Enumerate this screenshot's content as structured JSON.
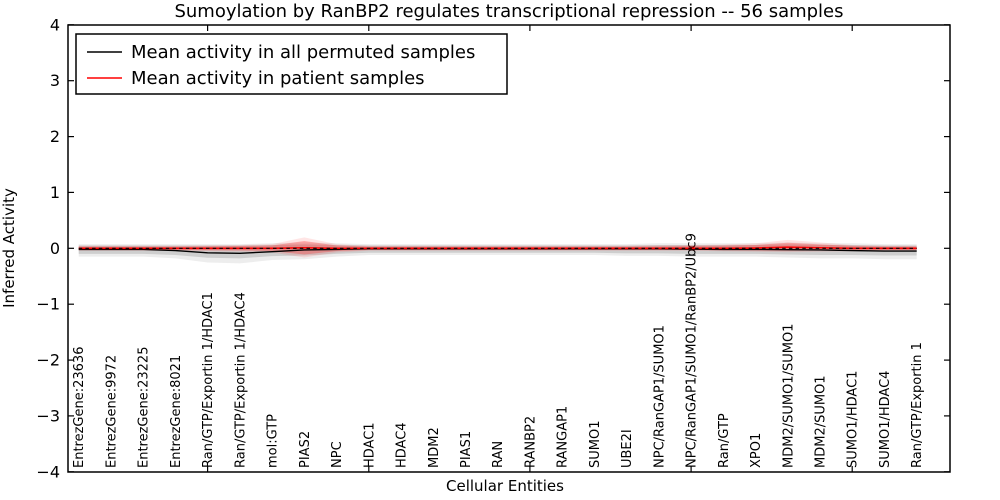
{
  "chart_data": {
    "type": "line",
    "title": "Sumoylation by RanBP2 regulates transcriptional repression -- 56 samples",
    "xlabel": "Cellular Entities",
    "ylabel": "Inferred Activity",
    "ylim": [
      -4,
      4
    ],
    "grid": false,
    "legend_position": "upper-left",
    "categories": [
      "EntrezGene:23636",
      "EntrezGene:9972",
      "EntrezGene:23225",
      "EntrezGene:8021",
      "Ran/GTP/Exportin 1/HDAC1",
      "Ran/GTP/Exportin 1/HDAC4",
      "mol:GTP",
      "PIAS2",
      "NPC",
      "HDAC1",
      "HDAC4",
      "MDM2",
      "PIAS1",
      "RAN",
      "RANBP2",
      "RANGAP1",
      "SUMO1",
      "UBE2I",
      "NPC/RanGAP1/SUMO1",
      "NPC/RanGAP1/SUMO1/RanBP2/Ubc9",
      "Ran/GTP",
      "XPO1",
      "MDM2/SUMO1/SUMO1",
      "MDM2/SUMO1",
      "SUMO1/HDAC1",
      "SUMO1/HDAC4",
      "Ran/GTP/Exportin 1"
    ],
    "yticks": [
      {
        "value": 4,
        "label": "4"
      },
      {
        "value": 3,
        "label": "3"
      },
      {
        "value": 2,
        "label": "2"
      },
      {
        "value": 1,
        "label": "1"
      },
      {
        "value": 0,
        "label": "0"
      },
      {
        "value": -1,
        "label": "−1"
      },
      {
        "value": -2,
        "label": "−2"
      },
      {
        "value": -3,
        "label": "−3"
      },
      {
        "value": -4,
        "label": "−4"
      }
    ],
    "xtick_positions": [
      5,
      10,
      15,
      20,
      25
    ],
    "zero_line": {
      "value": 0,
      "style": "dashed",
      "color": "#000000"
    },
    "series": [
      {
        "name": "Mean activity in all permuted samples",
        "color": "#000000",
        "band_color": "#000000",
        "values": [
          -0.02,
          -0.02,
          -0.02,
          -0.04,
          -0.08,
          -0.09,
          -0.06,
          -0.03,
          -0.02,
          -0.01,
          -0.01,
          -0.01,
          -0.01,
          -0.01,
          -0.01,
          -0.01,
          -0.01,
          -0.01,
          -0.01,
          -0.015,
          -0.02,
          -0.02,
          -0.025,
          -0.03,
          -0.04,
          -0.05,
          -0.05
        ],
        "band_upper": [
          0.05,
          0.05,
          0.05,
          0.05,
          0.05,
          0.05,
          0.06,
          0.07,
          0.06,
          0.05,
          0.05,
          0.05,
          0.05,
          0.05,
          0.05,
          0.05,
          0.05,
          0.05,
          0.06,
          0.06,
          0.06,
          0.06,
          0.07,
          0.06,
          0.06,
          0.05,
          0.05
        ],
        "band_lower": [
          -0.1,
          -0.1,
          -0.1,
          -0.12,
          -0.17,
          -0.18,
          -0.14,
          -0.13,
          -0.1,
          -0.08,
          -0.08,
          -0.08,
          -0.08,
          -0.08,
          -0.08,
          -0.08,
          -0.08,
          -0.09,
          -0.09,
          -0.1,
          -0.1,
          -0.1,
          -0.11,
          -0.12,
          -0.12,
          -0.13,
          -0.13
        ]
      },
      {
        "name": "Mean activity in patient samples",
        "color": "#ff0000",
        "band_color": "#ff0000",
        "values": [
          0,
          0,
          0,
          0,
          0,
          0,
          0,
          0.01,
          0,
          0,
          0,
          0,
          0,
          0,
          0,
          0,
          0,
          0,
          0,
          0,
          0,
          0.005,
          0.02,
          0.01,
          0,
          0,
          0
        ],
        "band_upper": [
          0.03,
          0.03,
          0.03,
          0.03,
          0.035,
          0.04,
          0.05,
          0.13,
          0.05,
          0.03,
          0.03,
          0.03,
          0.03,
          0.03,
          0.03,
          0.03,
          0.03,
          0.03,
          0.035,
          0.04,
          0.045,
          0.06,
          0.1,
          0.07,
          0.04,
          0.03,
          0.03
        ],
        "band_lower": [
          -0.03,
          -0.03,
          -0.03,
          -0.03,
          -0.035,
          -0.04,
          -0.05,
          -0.11,
          -0.05,
          -0.03,
          -0.03,
          -0.03,
          -0.03,
          -0.03,
          -0.03,
          -0.03,
          -0.03,
          -0.03,
          -0.03,
          -0.03,
          -0.035,
          -0.04,
          -0.045,
          -0.04,
          -0.035,
          -0.03,
          -0.03
        ]
      }
    ]
  }
}
